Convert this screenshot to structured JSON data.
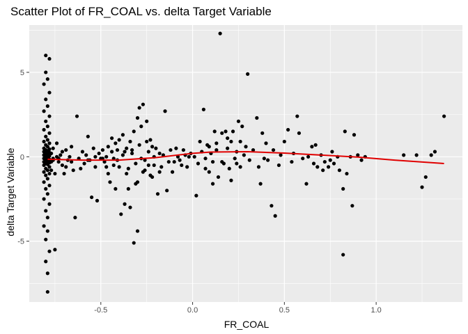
{
  "chart_data": {
    "type": "scatter",
    "title": "Scatter Plot of FR_COAL vs. delta Target Variable",
    "xlabel": "FR_COAL",
    "ylabel": "delta Target Variable",
    "xlim": [
      -0.89,
      1.47
    ],
    "ylim": [
      -8.6,
      7.8
    ],
    "x_ticks": [
      -0.5,
      0.0,
      0.5,
      1.0
    ],
    "x_tick_labels": [
      "-0.5",
      "0.0",
      "0.5",
      "1.0"
    ],
    "y_ticks": [
      -5,
      0,
      5
    ],
    "y_tick_labels": [
      "-5",
      "0",
      "5"
    ],
    "grid": true,
    "legend": "none",
    "colors": {
      "panel": "#ebebeb",
      "grid": "#ffffff",
      "points": "#000000",
      "smooth": "#e00000"
    },
    "series": [
      {
        "type": "points",
        "points": [
          [
            -0.79,
            -8.0
          ],
          [
            -0.79,
            -6.9
          ],
          [
            -0.8,
            -6.2
          ],
          [
            -0.78,
            -5.6
          ],
          [
            -0.8,
            -4.9
          ],
          [
            -0.79,
            -4.4
          ],
          [
            -0.81,
            -4.1
          ],
          [
            -0.79,
            -3.6
          ],
          [
            -0.8,
            -3.2
          ],
          [
            -0.78,
            -2.8
          ],
          [
            -0.81,
            -2.5
          ],
          [
            -0.79,
            -2.2
          ],
          [
            -0.8,
            -1.9
          ],
          [
            -0.78,
            -1.7
          ],
          [
            -0.81,
            -1.5
          ],
          [
            -0.79,
            -1.3
          ],
          [
            -0.8,
            -1.1
          ],
          [
            -0.78,
            -1.0
          ],
          [
            -0.81,
            -0.9
          ],
          [
            -0.79,
            -0.8
          ],
          [
            -0.8,
            -0.7
          ],
          [
            -0.78,
            -0.6
          ],
          [
            -0.81,
            -0.5
          ],
          [
            -0.79,
            -0.45
          ],
          [
            -0.8,
            -0.4
          ],
          [
            -0.78,
            -0.35
          ],
          [
            -0.81,
            -0.3
          ],
          [
            -0.79,
            -0.25
          ],
          [
            -0.8,
            -0.2
          ],
          [
            -0.78,
            -0.15
          ],
          [
            -0.81,
            -0.1
          ],
          [
            -0.79,
            -0.05
          ],
          [
            -0.8,
            0.0
          ],
          [
            -0.78,
            0.05
          ],
          [
            -0.81,
            0.1
          ],
          [
            -0.79,
            0.15
          ],
          [
            -0.8,
            0.2
          ],
          [
            -0.78,
            0.25
          ],
          [
            -0.81,
            0.3
          ],
          [
            -0.79,
            0.35
          ],
          [
            -0.8,
            0.4
          ],
          [
            -0.78,
            0.45
          ],
          [
            -0.81,
            0.5
          ],
          [
            -0.79,
            0.6
          ],
          [
            -0.8,
            0.7
          ],
          [
            -0.78,
            0.8
          ],
          [
            -0.81,
            0.9
          ],
          [
            -0.79,
            1.0
          ],
          [
            -0.8,
            1.2
          ],
          [
            -0.78,
            1.4
          ],
          [
            -0.81,
            1.6
          ],
          [
            -0.79,
            1.8
          ],
          [
            -0.8,
            2.1
          ],
          [
            -0.78,
            2.4
          ],
          [
            -0.81,
            2.7
          ],
          [
            -0.79,
            3.0
          ],
          [
            -0.8,
            3.4
          ],
          [
            -0.78,
            3.8
          ],
          [
            -0.81,
            4.3
          ],
          [
            -0.79,
            4.6
          ],
          [
            -0.8,
            5.0
          ],
          [
            -0.8,
            6.0
          ],
          [
            -0.78,
            5.8
          ],
          [
            -0.77,
            -0.3
          ],
          [
            -0.77,
            0.2
          ],
          [
            -0.77,
            -0.8
          ],
          [
            -0.76,
            0.5
          ],
          [
            -0.76,
            -0.1
          ],
          [
            -0.75,
            -5.5
          ],
          [
            -0.75,
            -1.0
          ],
          [
            -0.74,
            0.8
          ],
          [
            -0.73,
            -0.3
          ],
          [
            -0.72,
            0.1
          ],
          [
            -0.71,
            -0.5
          ],
          [
            -0.7,
            -1.0
          ],
          [
            -0.69,
            0.4
          ],
          [
            -0.68,
            -0.2
          ],
          [
            -0.67,
            0.0
          ],
          [
            -0.66,
            0.6
          ],
          [
            -0.65,
            -0.8
          ],
          [
            -0.64,
            -3.6
          ],
          [
            -0.63,
            2.4
          ],
          [
            -0.62,
            -0.1
          ],
          [
            -0.6,
            0.3
          ],
          [
            -0.59,
            -0.4
          ],
          [
            -0.58,
            0.1
          ],
          [
            -0.57,
            1.2
          ],
          [
            -0.56,
            -0.2
          ],
          [
            -0.55,
            -2.4
          ],
          [
            -0.54,
            0.5
          ],
          [
            -0.53,
            -0.6
          ],
          [
            -0.52,
            -2.6
          ],
          [
            -0.51,
            0.2
          ],
          [
            -0.5,
            -0.1
          ],
          [
            -0.49,
            0.4
          ],
          [
            -0.48,
            -0.3
          ],
          [
            -0.47,
            0.0
          ],
          [
            -0.46,
            0.6
          ],
          [
            -0.45,
            -1.5
          ],
          [
            -0.44,
            0.3
          ],
          [
            -0.43,
            -0.5
          ],
          [
            -0.42,
            0.8
          ],
          [
            -0.41,
            -0.2
          ],
          [
            -0.4,
            1.0
          ],
          [
            -0.39,
            -3.4
          ],
          [
            -0.38,
            0.1
          ],
          [
            -0.37,
            -2.8
          ],
          [
            -0.36,
            0.5
          ],
          [
            -0.35,
            -0.7
          ],
          [
            -0.34,
            -3.0
          ],
          [
            -0.33,
            0.2
          ],
          [
            -0.32,
            1.5
          ],
          [
            -0.31,
            -0.4
          ],
          [
            -0.3,
            2.3
          ],
          [
            -0.3,
            -1.5
          ],
          [
            -0.29,
            0.7
          ],
          [
            -0.28,
            -0.1
          ],
          [
            -0.27,
            3.1
          ],
          [
            -0.26,
            -0.8
          ],
          [
            -0.25,
            2.1
          ],
          [
            -0.24,
            0.3
          ],
          [
            -0.23,
            1.0
          ],
          [
            -0.22,
            -1.2
          ],
          [
            -0.21,
            0.0
          ],
          [
            -0.2,
            0.5
          ],
          [
            -0.3,
            -4.4
          ],
          [
            -0.32,
            -5.1
          ],
          [
            -0.34,
            0.9
          ],
          [
            -0.36,
            -1.0
          ],
          [
            -0.38,
            1.3
          ],
          [
            -0.4,
            -0.6
          ],
          [
            -0.42,
            -1.9
          ],
          [
            -0.44,
            1.1
          ],
          [
            -0.46,
            -1.0
          ],
          [
            -0.35,
            -1.9
          ],
          [
            -0.33,
            0.4
          ],
          [
            -0.31,
            -1.6
          ],
          [
            -0.29,
            2.9
          ],
          [
            -0.28,
            1.8
          ],
          [
            -0.26,
            -0.2
          ],
          [
            -0.25,
            0.9
          ],
          [
            -0.24,
            -0.5
          ],
          [
            -0.23,
            -1.1
          ],
          [
            -0.22,
            0.6
          ],
          [
            -0.19,
            -2.2
          ],
          [
            -0.18,
            0.2
          ],
          [
            -0.17,
            -0.6
          ],
          [
            -0.15,
            2.7
          ],
          [
            -0.14,
            -2.0
          ],
          [
            -0.12,
            0.4
          ],
          [
            -0.1,
            -0.3
          ],
          [
            -0.08,
            0.0
          ],
          [
            -0.06,
            -0.5
          ],
          [
            -0.04,
            0.1
          ],
          [
            -0.02,
            0.0
          ],
          [
            -0.01,
            0.2
          ],
          [
            0.01,
            0.0
          ],
          [
            0.02,
            -2.3
          ],
          [
            0.03,
            -0.4
          ],
          [
            0.05,
            0.3
          ],
          [
            0.06,
            2.8
          ],
          [
            0.07,
            -0.1
          ],
          [
            0.08,
            0.7
          ],
          [
            0.09,
            -0.9
          ],
          [
            0.1,
            0.2
          ],
          [
            0.11,
            -0.3
          ],
          [
            0.12,
            1.5
          ],
          [
            0.13,
            0.4
          ],
          [
            0.14,
            -1.2
          ],
          [
            0.15,
            7.3
          ],
          [
            0.16,
            1.4
          ],
          [
            0.17,
            -0.4
          ],
          [
            0.18,
            1.5
          ],
          [
            0.19,
            0.5
          ],
          [
            0.2,
            -0.7
          ],
          [
            0.21,
            0.9
          ],
          [
            0.22,
            1.5
          ],
          [
            0.23,
            -0.1
          ],
          [
            0.24,
            0.3
          ],
          [
            0.25,
            2.1
          ],
          [
            0.26,
            -0.6
          ],
          [
            0.27,
            1.8
          ],
          [
            0.28,
            0.1
          ],
          [
            0.29,
            0.6
          ],
          [
            0.3,
            4.9
          ],
          [
            0.31,
            -0.2
          ],
          [
            0.33,
            0.4
          ],
          [
            0.35,
            2.3
          ],
          [
            0.36,
            -0.6
          ],
          [
            0.37,
            -1.6
          ],
          [
            0.38,
            1.4
          ],
          [
            0.4,
            0.8
          ],
          [
            0.41,
            -0.2
          ],
          [
            0.43,
            -2.9
          ],
          [
            0.44,
            0.4
          ],
          [
            0.45,
            -3.5
          ],
          [
            0.47,
            -0.5
          ],
          [
            0.5,
            0.9
          ],
          [
            0.52,
            1.6
          ],
          [
            0.54,
            -0.3
          ],
          [
            0.55,
            0.2
          ],
          [
            0.57,
            2.4
          ],
          [
            0.58,
            1.4
          ],
          [
            0.6,
            -0.1
          ],
          [
            0.62,
            -1.6
          ],
          [
            0.63,
            0.0
          ],
          [
            0.65,
            0.6
          ],
          [
            0.66,
            -0.4
          ],
          [
            0.68,
            -0.6
          ],
          [
            0.7,
            0.1
          ],
          [
            0.72,
            -0.3
          ],
          [
            0.74,
            -0.6
          ],
          [
            0.76,
            0.3
          ],
          [
            0.77,
            -0.4
          ],
          [
            0.79,
            0.0
          ],
          [
            0.8,
            -0.8
          ],
          [
            0.82,
            -1.9
          ],
          [
            0.82,
            -5.8
          ],
          [
            0.83,
            1.5
          ],
          [
            0.84,
            -1.0
          ],
          [
            0.86,
            0.0
          ],
          [
            0.87,
            -2.9
          ],
          [
            0.88,
            1.3
          ],
          [
            0.9,
            0.1
          ],
          [
            0.92,
            -0.2
          ],
          [
            0.94,
            0.0
          ],
          [
            1.15,
            0.1
          ],
          [
            1.22,
            0.1
          ],
          [
            1.25,
            -1.8
          ],
          [
            1.27,
            -1.2
          ],
          [
            1.3,
            0.1
          ],
          [
            1.32,
            0.3
          ],
          [
            1.37,
            2.4
          ],
          [
            0.75,
            -0.2
          ],
          [
            0.71,
            -0.8
          ],
          [
            0.67,
            0.7
          ],
          [
            0.48,
            0.1
          ],
          [
            0.39,
            -0.1
          ],
          [
            0.26,
            0.9
          ],
          [
            0.24,
            -0.4
          ],
          [
            0.21,
            -1.4
          ],
          [
            0.19,
            1.1
          ],
          [
            0.16,
            -0.3
          ],
          [
            0.13,
            0.8
          ],
          [
            0.11,
            -1.6
          ],
          [
            0.09,
            0.6
          ],
          [
            0.07,
            -0.7
          ],
          [
            0.04,
            0.9
          ],
          [
            -0.03,
            -0.6
          ],
          [
            -0.05,
            0.4
          ],
          [
            -0.07,
            -0.2
          ],
          [
            -0.09,
            0.5
          ],
          [
            -0.11,
            -0.9
          ],
          [
            -0.13,
            -0.3
          ],
          [
            -0.16,
            0.1
          ],
          [
            -0.18,
            -0.9
          ],
          [
            -0.21,
            -0.5
          ],
          [
            -0.27,
            -0.9
          ],
          [
            -0.37,
            0.3
          ],
          [
            -0.41,
            0.4
          ],
          [
            -0.43,
            -0.1
          ],
          [
            -0.47,
            -0.6
          ],
          [
            -0.49,
            -0.1
          ],
          [
            -0.53,
            0.0
          ],
          [
            -0.57,
            -0.2
          ],
          [
            -0.61,
            -0.7
          ],
          [
            -0.66,
            -0.3
          ],
          [
            -0.69,
            -0.6
          ],
          [
            -0.71,
            0.3
          ],
          [
            -0.73,
            -0.1
          ],
          [
            -0.74,
            0.0
          ],
          [
            -0.76,
            -0.2
          ]
        ]
      },
      {
        "type": "smooth",
        "x": [
          -0.79,
          -0.6,
          -0.4,
          -0.2,
          0.0,
          0.1,
          0.3,
          0.5,
          0.7,
          0.9,
          1.1,
          1.37
        ],
        "y": [
          -0.15,
          -0.2,
          -0.2,
          -0.05,
          0.2,
          0.28,
          0.3,
          0.22,
          0.1,
          -0.02,
          -0.2,
          -0.4
        ]
      }
    ]
  }
}
